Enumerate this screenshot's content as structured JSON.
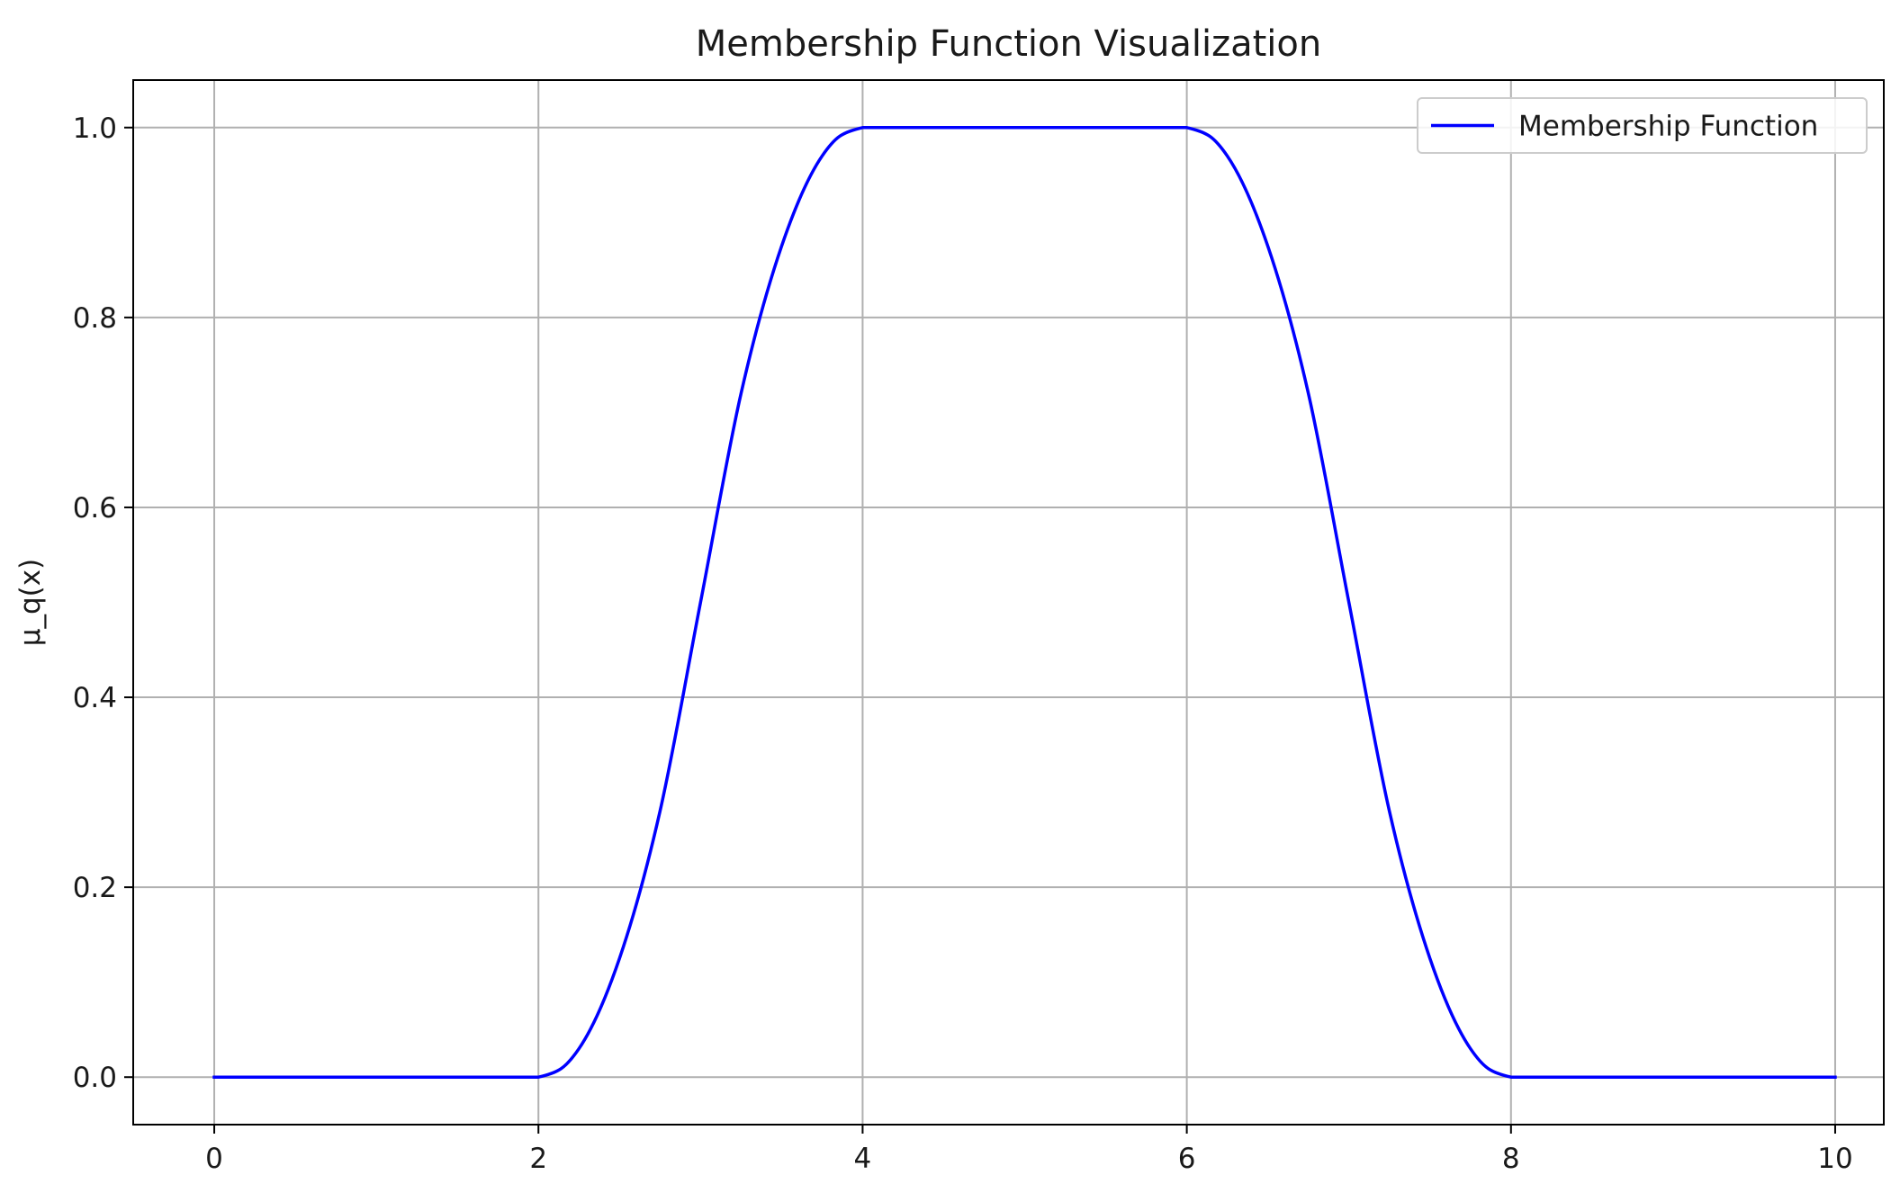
{
  "chart_data": {
    "type": "line",
    "title": "Membership Function Visualization",
    "xlabel": "",
    "ylabel": "μ_q(x)",
    "xlim": [
      -0.5,
      10.3
    ],
    "ylim": [
      -0.05,
      1.05
    ],
    "xticks": [
      0,
      2,
      4,
      6,
      8,
      10
    ],
    "xtick_labels": [
      "0",
      "2",
      "4",
      "6",
      "8",
      "10"
    ],
    "yticks": [
      0.0,
      0.2,
      0.4,
      0.6,
      0.8,
      1.0
    ],
    "ytick_labels": [
      "0.0",
      "0.2",
      "0.4",
      "0.6",
      "0.8",
      "1.0"
    ],
    "grid": true,
    "legend_position": "top-right",
    "series": [
      {
        "name": "Membership Function",
        "color": "#0000ff",
        "x": [
          0,
          0.5,
          1,
          1.5,
          2,
          2.25,
          2.5,
          2.75,
          3,
          3.25,
          3.5,
          3.75,
          4,
          4.5,
          5,
          5.5,
          6,
          6.25,
          6.5,
          6.75,
          7,
          7.25,
          7.5,
          7.75,
          8,
          8.5,
          9,
          9.5,
          10
        ],
        "y": [
          0,
          0,
          0,
          0,
          0,
          0.03,
          0.125,
          0.28,
          0.5,
          0.72,
          0.875,
          0.97,
          1,
          1,
          1,
          1,
          1,
          0.97,
          0.875,
          0.72,
          0.5,
          0.28,
          0.125,
          0.03,
          0,
          0,
          0,
          0,
          0
        ]
      }
    ]
  }
}
